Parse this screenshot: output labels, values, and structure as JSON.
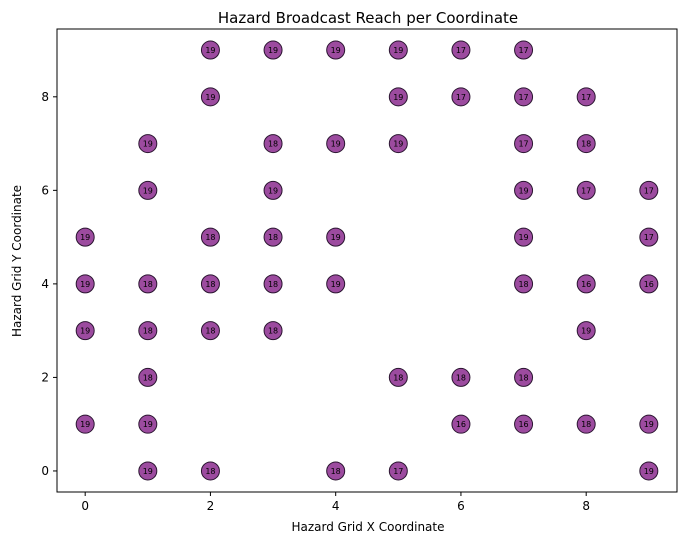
{
  "chart_data": {
    "type": "scatter",
    "title": "Hazard Broadcast Reach per Coordinate",
    "xlabel": "Hazard Grid X Coordinate",
    "ylabel": "Hazard Grid Y Coordinate",
    "xlim": [
      -0.45,
      9.45
    ],
    "ylim": [
      -0.45,
      9.45
    ],
    "xticks": [
      0,
      2,
      4,
      6,
      8
    ],
    "yticks": [
      0,
      2,
      4,
      6,
      8
    ],
    "grid": false,
    "marker_color": "#8B2B8E",
    "marker_edge_color": "#2a1530",
    "points": [
      {
        "x": 2,
        "y": 9,
        "label": "19"
      },
      {
        "x": 3,
        "y": 9,
        "label": "19"
      },
      {
        "x": 4,
        "y": 9,
        "label": "19"
      },
      {
        "x": 5,
        "y": 9,
        "label": "19"
      },
      {
        "x": 6,
        "y": 9,
        "label": "17"
      },
      {
        "x": 7,
        "y": 9,
        "label": "17"
      },
      {
        "x": 2,
        "y": 8,
        "label": "19"
      },
      {
        "x": 5,
        "y": 8,
        "label": "19"
      },
      {
        "x": 6,
        "y": 8,
        "label": "17"
      },
      {
        "x": 7,
        "y": 8,
        "label": "17"
      },
      {
        "x": 8,
        "y": 8,
        "label": "17"
      },
      {
        "x": 1,
        "y": 7,
        "label": "19"
      },
      {
        "x": 3,
        "y": 7,
        "label": "18"
      },
      {
        "x": 4,
        "y": 7,
        "label": "19"
      },
      {
        "x": 5,
        "y": 7,
        "label": "19"
      },
      {
        "x": 7,
        "y": 7,
        "label": "17"
      },
      {
        "x": 8,
        "y": 7,
        "label": "18"
      },
      {
        "x": 1,
        "y": 6,
        "label": "19"
      },
      {
        "x": 3,
        "y": 6,
        "label": "19"
      },
      {
        "x": 7,
        "y": 6,
        "label": "19"
      },
      {
        "x": 8,
        "y": 6,
        "label": "17"
      },
      {
        "x": 9,
        "y": 6,
        "label": "17"
      },
      {
        "x": 0,
        "y": 5,
        "label": "19"
      },
      {
        "x": 2,
        "y": 5,
        "label": "18"
      },
      {
        "x": 3,
        "y": 5,
        "label": "18"
      },
      {
        "x": 4,
        "y": 5,
        "label": "19"
      },
      {
        "x": 7,
        "y": 5,
        "label": "19"
      },
      {
        "x": 9,
        "y": 5,
        "label": "17"
      },
      {
        "x": 0,
        "y": 4,
        "label": "19"
      },
      {
        "x": 1,
        "y": 4,
        "label": "18"
      },
      {
        "x": 2,
        "y": 4,
        "label": "18"
      },
      {
        "x": 3,
        "y": 4,
        "label": "18"
      },
      {
        "x": 4,
        "y": 4,
        "label": "19"
      },
      {
        "x": 7,
        "y": 4,
        "label": "18"
      },
      {
        "x": 8,
        "y": 4,
        "label": "16"
      },
      {
        "x": 9,
        "y": 4,
        "label": "16"
      },
      {
        "x": 0,
        "y": 3,
        "label": "19"
      },
      {
        "x": 1,
        "y": 3,
        "label": "18"
      },
      {
        "x": 2,
        "y": 3,
        "label": "18"
      },
      {
        "x": 3,
        "y": 3,
        "label": "18"
      },
      {
        "x": 8,
        "y": 3,
        "label": "19"
      },
      {
        "x": 1,
        "y": 2,
        "label": "18"
      },
      {
        "x": 5,
        "y": 2,
        "label": "18"
      },
      {
        "x": 6,
        "y": 2,
        "label": "18"
      },
      {
        "x": 7,
        "y": 2,
        "label": "18"
      },
      {
        "x": 0,
        "y": 1,
        "label": "19"
      },
      {
        "x": 1,
        "y": 1,
        "label": "19"
      },
      {
        "x": 6,
        "y": 1,
        "label": "16"
      },
      {
        "x": 7,
        "y": 1,
        "label": "16"
      },
      {
        "x": 8,
        "y": 1,
        "label": "18"
      },
      {
        "x": 9,
        "y": 1,
        "label": "19"
      },
      {
        "x": 1,
        "y": 0,
        "label": "19"
      },
      {
        "x": 2,
        "y": 0,
        "label": "18"
      },
      {
        "x": 4,
        "y": 0,
        "label": "18"
      },
      {
        "x": 5,
        "y": 0,
        "label": "17"
      },
      {
        "x": 9,
        "y": 0,
        "label": "19"
      }
    ]
  }
}
